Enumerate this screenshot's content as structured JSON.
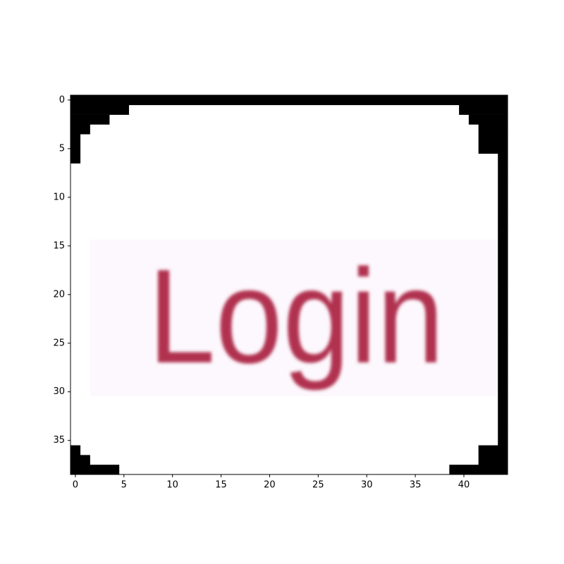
{
  "chart_data": {
    "type": "image",
    "image_text": "Login",
    "xlim": [
      -0.5,
      44.5
    ],
    "ylim": [
      38.5,
      -0.5
    ],
    "xticks": [
      0,
      5,
      10,
      15,
      20,
      25,
      30,
      35,
      40
    ],
    "yticks": [
      0,
      5,
      10,
      15,
      20,
      25,
      30,
      35
    ]
  }
}
